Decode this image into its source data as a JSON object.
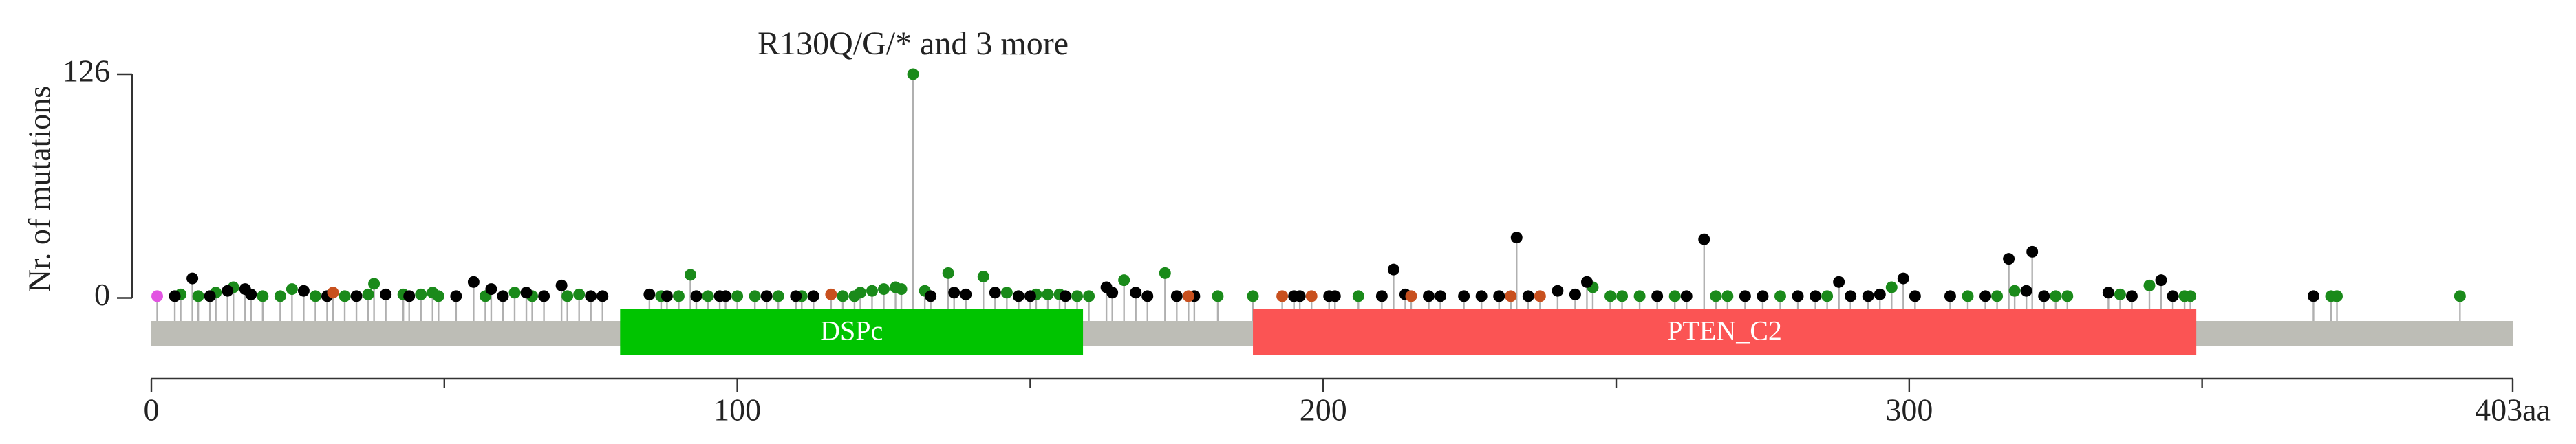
{
  "chart_data": {
    "type": "lollipop",
    "annotation": "R130Q/G/* and 3 more",
    "ylabel": "Nr. of mutations",
    "xlim": [
      0,
      403
    ],
    "ylim": [
      0,
      126
    ],
    "yticks": [
      0,
      126
    ],
    "xticks": [
      0,
      100,
      200,
      300,
      {
        "value": 403,
        "label": "403aa"
      }
    ],
    "xminor_ticks": [
      50,
      150,
      250,
      350
    ],
    "backbone_color": "#bdbdb6",
    "stem_color": "#b0b0b0",
    "domains": [
      {
        "label": "DSPc",
        "start": 80,
        "end": 159,
        "color": "#00c400"
      },
      {
        "label": "PTEN_C2",
        "start": 188,
        "end": 349,
        "color": "#fb5454"
      }
    ],
    "series": [
      {
        "color": "#1a8a1a",
        "x": [
          5,
          8,
          11,
          14,
          19,
          22,
          24,
          28,
          33,
          37,
          38,
          43,
          46,
          48,
          49,
          57,
          62,
          65,
          71,
          73,
          87,
          90,
          92,
          95,
          100,
          103,
          107,
          111,
          118,
          120,
          121,
          123,
          125,
          127,
          128,
          130,
          132,
          136,
          142,
          146,
          151,
          153,
          155,
          158,
          160,
          166,
          173,
          182,
          188,
          206,
          246,
          249,
          251,
          254,
          260,
          267,
          269,
          278,
          286,
          297,
          310,
          315,
          318,
          325,
          327,
          336,
          341,
          347,
          348,
          372,
          373,
          394
        ],
        "values": [
          2,
          1,
          3,
          6,
          1,
          1,
          5,
          1,
          1,
          2,
          8,
          2,
          2,
          3,
          1,
          1,
          3,
          1,
          1,
          2,
          1,
          1,
          13,
          1,
          1,
          1,
          1,
          1,
          1,
          1,
          3,
          4,
          5,
          6,
          5,
          126,
          4,
          14,
          12,
          3,
          2,
          2,
          2,
          1,
          1,
          10,
          14,
          1,
          1,
          1,
          6,
          1,
          1,
          1,
          1,
          1,
          1,
          1,
          1,
          6,
          1,
          1,
          4,
          1,
          1,
          2,
          7,
          1,
          1,
          1,
          1,
          1
        ]
      },
      {
        "color": "#000000",
        "x": [
          4,
          7,
          10,
          13,
          16,
          17,
          26,
          30,
          35,
          40,
          44,
          52,
          55,
          58,
          60,
          64,
          67,
          70,
          75,
          77,
          85,
          88,
          93,
          97,
          98,
          105,
          110,
          113,
          133,
          137,
          139,
          144,
          148,
          150,
          156,
          163,
          164,
          168,
          170,
          175,
          178,
          195,
          196,
          201,
          202,
          210,
          212,
          214,
          218,
          220,
          224,
          227,
          230,
          233,
          235,
          240,
          243,
          245,
          257,
          262,
          265,
          272,
          275,
          281,
          284,
          288,
          290,
          293,
          295,
          299,
          301,
          307,
          313,
          317,
          320,
          321,
          323,
          334,
          338,
          343,
          345,
          369
        ],
        "values": [
          1,
          11,
          1,
          4,
          5,
          2,
          4,
          1,
          1,
          2,
          1,
          1,
          9,
          5,
          1,
          3,
          1,
          7,
          1,
          1,
          2,
          1,
          1,
          1,
          1,
          1,
          1,
          1,
          1,
          3,
          2,
          3,
          1,
          1,
          1,
          6,
          3,
          3,
          1,
          1,
          1,
          1,
          1,
          1,
          1,
          1,
          16,
          2,
          1,
          1,
          1,
          1,
          1,
          34,
          1,
          4,
          2,
          9,
          1,
          1,
          33,
          1,
          1,
          1,
          1,
          9,
          1,
          1,
          2,
          11,
          1,
          1,
          1,
          22,
          4,
          26,
          1,
          3,
          1,
          10,
          1,
          1
        ]
      },
      {
        "color": "#c8501e",
        "x": [
          31,
          116,
          177,
          193,
          198,
          215,
          232,
          237
        ],
        "values": [
          3,
          2,
          1,
          1,
          1,
          1,
          1,
          1
        ]
      },
      {
        "color": "#e254e2",
        "x": [
          1
        ],
        "values": [
          1
        ]
      }
    ]
  }
}
